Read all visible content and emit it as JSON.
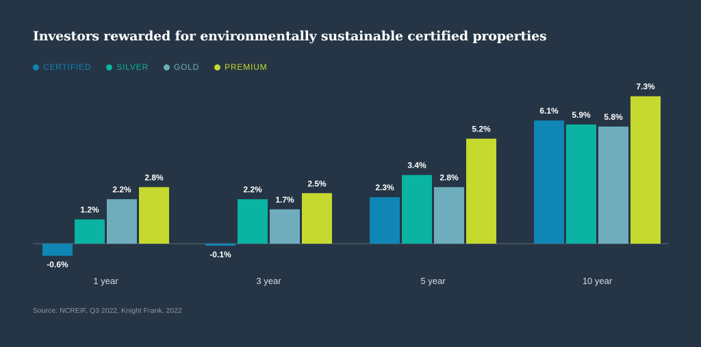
{
  "title": "Investors rewarded for environmentally sustainable certified properties",
  "source": "Source: NCREIF, Q3 2022,  Knight Frank, 2022",
  "colors": {
    "background": "#253545",
    "axis": "#5d6b79",
    "label": "#ffffff",
    "category_label": "#d7dde3"
  },
  "chart_data": {
    "type": "bar",
    "title": "Investors rewarded for environmentally sustainable certified properties",
    "categories": [
      "1 year",
      "3 year",
      "5 year",
      "10 year"
    ],
    "series": [
      {
        "name": "CERTIFIED",
        "color": "#0f86b5",
        "values": [
          -0.6,
          -0.1,
          2.3,
          6.1
        ],
        "labels": [
          "-0.6%",
          "-0.1%",
          "2.3%",
          "6.1%"
        ]
      },
      {
        "name": "SILVER",
        "color": "#0ab3a2",
        "values": [
          1.2,
          2.2,
          3.4,
          5.9
        ],
        "labels": [
          "1.2%",
          "2.2%",
          "3.4%",
          "5.9%"
        ]
      },
      {
        "name": "GOLD",
        "color": "#6fadbd",
        "values": [
          2.2,
          1.7,
          2.8,
          5.8
        ],
        "labels": [
          "2.2%",
          "1.7%",
          "2.8%",
          "5.8%"
        ]
      },
      {
        "name": "PREMIUM",
        "color": "#c6d92f",
        "values": [
          2.8,
          2.5,
          5.2,
          7.3
        ],
        "labels": [
          "2.8%",
          "2.5%",
          "5.2%",
          "7.3%"
        ]
      }
    ],
    "ylim": [
      -0.6,
      7.3
    ],
    "grid": false,
    "legend_placement": "top-left"
  }
}
